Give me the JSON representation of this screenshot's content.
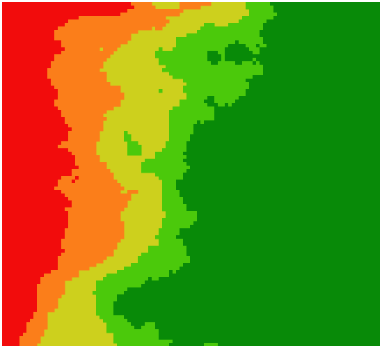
{
  "image": {
    "kind": "thematic-grid-map",
    "palette": [
      {
        "level": 0,
        "name": "red",
        "color": "#f20c0c"
      },
      {
        "level": 1,
        "name": "orange",
        "color": "#fb7e1a"
      },
      {
        "level": 2,
        "name": "yellow",
        "color": "#cdd01d"
      },
      {
        "level": 3,
        "name": "light-green",
        "color": "#4bc90b"
      },
      {
        "level": 4,
        "name": "dark-green",
        "color": "#088a08"
      }
    ],
    "background_color": "#ffffff"
  }
}
